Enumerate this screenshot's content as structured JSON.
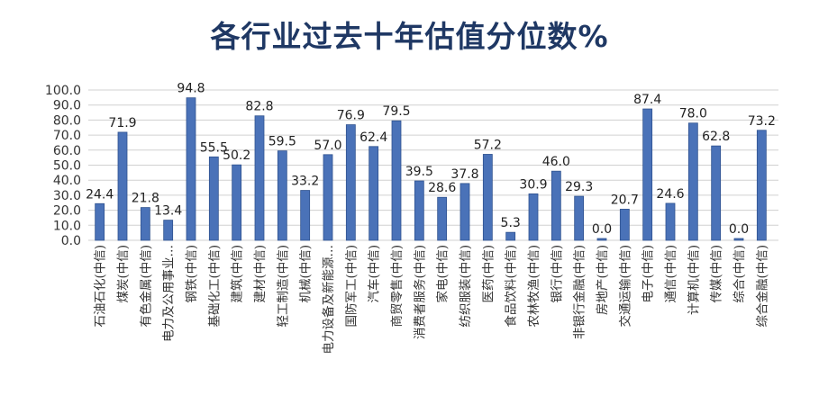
{
  "chart_data": {
    "type": "bar",
    "title": "各行业过去十年估值分位数%",
    "categories": [
      "石油石化(中信)",
      "煤炭(中信)",
      "有色金属(中信)",
      "电力及公用事业…",
      "钢铁(中信)",
      "基础化工(中信)",
      "建筑(中信)",
      "建材(中信)",
      "轻工制造(中信)",
      "机械(中信)",
      "电力设备及新能源…",
      "国防军工(中信)",
      "汽车(中信)",
      "商贸零售(中信)",
      "消费者服务(中信)",
      "家电(中信)",
      "纺织服装(中信)",
      "医药(中信)",
      "食品饮料(中信)",
      "农林牧渔(中信)",
      "银行(中信)",
      "非银行金融(中信)",
      "房地产(中信)",
      "交通运输(中信)",
      "电子(中信)",
      "通信(中信)",
      "计算机(中信)",
      "传媒(中信)",
      "综合(中信)",
      "综合金融(中信)"
    ],
    "values": [
      24.4,
      71.9,
      21.8,
      13.4,
      94.8,
      55.5,
      50.2,
      82.8,
      59.5,
      33.2,
      57.0,
      76.9,
      62.4,
      79.5,
      39.5,
      28.6,
      37.8,
      57.2,
      5.3,
      30.9,
      46.0,
      29.3,
      0.0,
      20.7,
      87.4,
      24.6,
      78.0,
      62.8,
      0.0,
      73.2
    ],
    "value_labels": [
      "24.4",
      "71.9",
      "21.8",
      "13.4",
      "94.8",
      "55.5",
      "50.2",
      "82.8",
      "59.5",
      "33.2",
      "57.0",
      "76.9",
      "62.4",
      "79.5",
      "39.5",
      "28.6",
      "37.8",
      "57.2",
      "5.3",
      "30.9",
      "46.0",
      "29.3",
      "0.0",
      "20.7",
      "87.4",
      "24.6",
      "78.0",
      "62.8",
      "0.0",
      "73.2"
    ],
    "y_ticks": [
      "0.0",
      "10.0",
      "20.0",
      "30.0",
      "40.0",
      "50.0",
      "60.0",
      "70.0",
      "80.0",
      "90.0",
      "100.0"
    ],
    "ylim": [
      0,
      100
    ],
    "grid": true,
    "bar_color": "#4a72b8",
    "bar_edge_color": "#2f528f"
  }
}
